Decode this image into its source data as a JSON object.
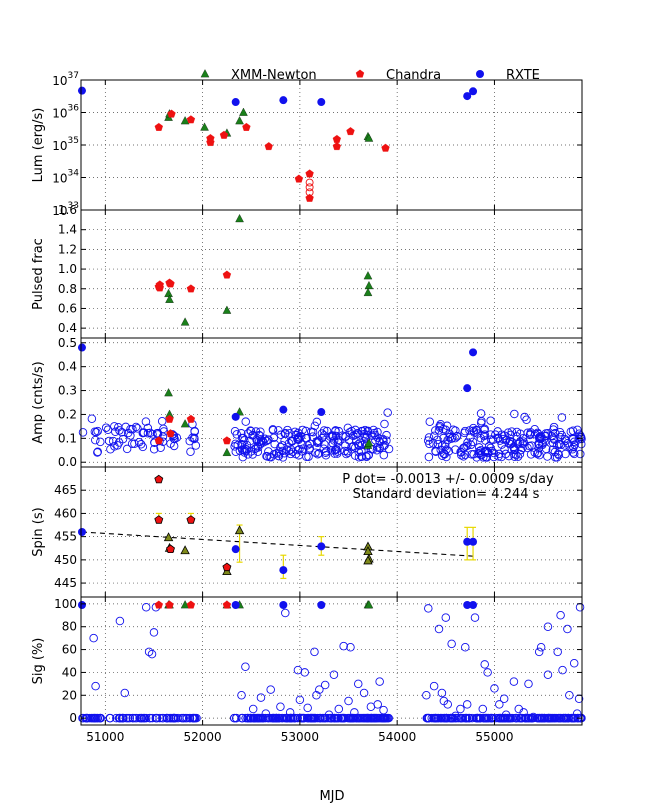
{
  "colors": {
    "xmm": "#1a7f1a",
    "chandra": "#ee1111",
    "rxte": "#1111ee",
    "errorbar": "#e8d800",
    "frame": "#000000",
    "grid": "#444444"
  },
  "legend": [
    {
      "name": "XMM-Newton",
      "marker": "triangle",
      "color": "#1a7f1a"
    },
    {
      "name": "Chandra",
      "marker": "pentagon",
      "color": "#ee1111"
    },
    {
      "name": "RXTE",
      "marker": "circle",
      "color": "#1111ee"
    }
  ],
  "xaxis": {
    "label": "MJD",
    "ticks": [
      51000,
      52000,
      53000,
      54000,
      55000
    ],
    "tick_labels": [
      "51000",
      "52000",
      "53000",
      "54000",
      "55000"
    ],
    "range": [
      50750,
      55900
    ]
  },
  "chart_data": [
    {
      "type": "scatter",
      "ylabel": "Lum (erg/s)",
      "yscale": "log",
      "ylim": [
        1e+33,
        1e+37
      ],
      "yticks": [
        1e+33,
        1e+34,
        1e+35,
        1e+36,
        1e+37
      ],
      "ytick_labels": [
        [
          "10",
          "33"
        ],
        [
          "10",
          "34"
        ],
        [
          "10",
          "35"
        ],
        [
          "10",
          "36"
        ],
        [
          "10",
          "37"
        ]
      ],
      "grid": true,
      "series": [
        {
          "name": "XMM-Newton",
          "marker": "triangle",
          "points": [
            [
              51650,
              7e+35
            ],
            [
              51660,
              9e+35
            ],
            [
              51820,
              5.5e+35
            ],
            [
              52020,
              3.5e+35
            ],
            [
              52250,
              2.3e+35
            ],
            [
              52380,
              5.5e+35
            ],
            [
              52420,
              1e+36
            ],
            [
              53700,
              1.8e+35
            ],
            [
              53710,
              1.6e+35
            ]
          ]
        },
        {
          "name": "Chandra",
          "marker": "pentagon",
          "points": [
            [
              51550,
              3.5e+35
            ],
            [
              51680,
              9e+35
            ],
            [
              51880,
              6e+35
            ],
            [
              52080,
              1.6e+35
            ],
            [
              52080,
              1.2e+35
            ],
            [
              52220,
              2e+35
            ],
            [
              52450,
              3.5e+35
            ],
            [
              52680,
              9e+34
            ],
            [
              52990,
              9e+33
            ],
            [
              53100,
              1.3e+34
            ],
            [
              53100,
              2.3e+33
            ],
            [
              53380,
              1.5e+35
            ],
            [
              53380,
              9e+34
            ],
            [
              53520,
              2.6e+35
            ],
            [
              53880,
              8e+34
            ]
          ]
        },
        {
          "name": "Chandra (open)",
          "marker": "open-circle-red",
          "points": [
            [
              53100,
              7e+33
            ],
            [
              53100,
              5e+33
            ],
            [
              53100,
              3.5e+33
            ]
          ]
        },
        {
          "name": "RXTE",
          "marker": "circle",
          "points": [
            [
              50760,
              4.7e+36
            ],
            [
              52340,
              2.1e+36
            ],
            [
              52830,
              2.4e+36
            ],
            [
              53220,
              2.1e+36
            ],
            [
              54720,
              3.2e+36
            ],
            [
              54780,
              4.5e+36
            ]
          ]
        }
      ]
    },
    {
      "type": "scatter",
      "ylabel": "Pulsed frac",
      "ylim": [
        0.3,
        1.6
      ],
      "yticks": [
        0.4,
        0.6,
        0.8,
        1.0,
        1.2,
        1.4,
        1.6
      ],
      "ytick_labels": [
        "0.4",
        "0.6",
        "0.8",
        "1.0",
        "1.2",
        "1.4",
        "1.6"
      ],
      "grid": true,
      "series": [
        {
          "name": "XMM-Newton",
          "marker": "triangle",
          "points": [
            [
              51650,
              0.75
            ],
            [
              51660,
              0.69
            ],
            [
              51820,
              0.46
            ],
            [
              52250,
              0.58
            ],
            [
              52380,
              1.51
            ],
            [
              53700,
              0.93
            ],
            [
              53710,
              0.83
            ],
            [
              53700,
              0.76
            ]
          ]
        },
        {
          "name": "Chandra",
          "marker": "pentagon",
          "points": [
            [
              51550,
              0.82
            ],
            [
              51560,
              0.84
            ],
            [
              51560,
              0.81
            ],
            [
              51660,
              0.86
            ],
            [
              51670,
              0.85
            ],
            [
              51880,
              0.8
            ],
            [
              52250,
              0.94
            ]
          ]
        }
      ]
    },
    {
      "type": "scatter",
      "ylabel": "Amp (cnts/s)",
      "ylim": [
        -0.02,
        0.52
      ],
      "yticks": [
        0.0,
        0.1,
        0.2,
        0.3,
        0.4,
        0.5
      ],
      "ytick_labels": [
        "0.0",
        "0.1",
        "0.2",
        "0.3",
        "0.4",
        "0.5"
      ],
      "grid": true,
      "series": [
        {
          "name": "XMM-Newton",
          "marker": "triangle",
          "points": [
            [
              51650,
              0.29
            ],
            [
              51660,
              0.2
            ],
            [
              51820,
              0.16
            ],
            [
              52250,
              0.04
            ],
            [
              52380,
              0.21
            ],
            [
              53700,
              0.07
            ],
            [
              53710,
              0.08
            ]
          ]
        },
        {
          "name": "Chandra",
          "marker": "pentagon",
          "points": [
            [
              51550,
              0.09
            ],
            [
              51660,
              0.18
            ],
            [
              51670,
              0.12
            ],
            [
              51880,
              0.18
            ],
            [
              52250,
              0.09
            ]
          ]
        },
        {
          "name": "RXTE",
          "marker": "circle",
          "points": [
            [
              50760,
              0.48
            ],
            [
              52340,
              0.19
            ],
            [
              52830,
              0.22
            ],
            [
              53220,
              0.21
            ],
            [
              54720,
              0.31
            ],
            [
              54780,
              0.46
            ]
          ]
        },
        {
          "name": "RXTE (open)",
          "marker": "open-circle",
          "clusters": [
            [
              50760,
              51950,
              0.02,
              0.38,
              75
            ],
            [
              52320,
              53920,
              0.0,
              0.22,
              230
            ],
            [
              54300,
              55900,
              0.0,
              0.23,
              230
            ]
          ]
        }
      ]
    },
    {
      "type": "scatter",
      "ylabel": "Spin (s)",
      "ylim": [
        442,
        470
      ],
      "yticks": [
        445,
        450,
        455,
        460,
        465
      ],
      "ytick_labels": [
        "445",
        "450",
        "455",
        "460",
        "465"
      ],
      "grid": true,
      "annotation": {
        "line1": "P dot= -0.0013 +/- 0.0009 s/day",
        "line2": "Standard deviation= 4.244 s"
      },
      "fit_line": [
        [
          50760,
          456.0
        ],
        [
          54780,
          450.8
        ]
      ],
      "series": [
        {
          "name": "XMM-Newton",
          "marker": "triangle",
          "points": [
            [
              51650,
              454.8
            ],
            [
              51660,
              452.5
            ],
            [
              51820,
              452.0
            ],
            [
              52250,
              447.5
            ],
            [
              52380,
              456.3
            ],
            [
              53700,
              452.8
            ],
            [
              53700,
              451.8
            ],
            [
              53710,
              450.2
            ],
            [
              53700,
              449.8
            ]
          ]
        },
        {
          "name": "Chandra",
          "marker": "pentagon",
          "points": [
            [
              51550,
              467.3
            ],
            [
              51550,
              458.6
            ],
            [
              51670,
              452.3
            ],
            [
              51880,
              458.6
            ],
            [
              52250,
              448.4
            ]
          ]
        },
        {
          "name": "RXTE",
          "marker": "circle",
          "points": [
            [
              50760,
              456.0
            ],
            [
              52340,
              452.3
            ],
            [
              52830,
              447.8
            ],
            [
              53220,
              452.9
            ],
            [
              54720,
              453.9
            ],
            [
              54780,
              453.9
            ]
          ]
        }
      ],
      "errorbars": [
        [
          52380,
          449.5,
          457.5
        ],
        [
          52830,
          446.0,
          451.0
        ],
        [
          53220,
          451.0,
          455.0
        ],
        [
          54720,
          450.0,
          457.0
        ],
        [
          54780,
          450.0,
          457.0
        ],
        [
          51550,
          458.0,
          460.0
        ],
        [
          51880,
          458.0,
          460.0
        ]
      ]
    },
    {
      "type": "scatter",
      "ylabel": "Sig (%)",
      "ylim": [
        -6,
        106
      ],
      "yticks": [
        0,
        20,
        40,
        60,
        80,
        100
      ],
      "ytick_labels": [
        "0",
        "20",
        "40",
        "60",
        "80",
        "100"
      ],
      "grid": true,
      "series": [
        {
          "name": "XMM-Newton",
          "marker": "triangle",
          "points": [
            [
              51650,
              99
            ],
            [
              51660,
              99
            ],
            [
              51820,
              99
            ],
            [
              52250,
              99
            ],
            [
              52380,
              99
            ],
            [
              53700,
              99
            ],
            [
              53710,
              99
            ]
          ]
        },
        {
          "name": "Chandra",
          "marker": "pentagon",
          "points": [
            [
              51550,
              99
            ],
            [
              51660,
              99
            ],
            [
              51880,
              99
            ],
            [
              52250,
              99
            ]
          ]
        },
        {
          "name": "RXTE",
          "marker": "circle",
          "points": [
            [
              50760,
              99
            ],
            [
              52340,
              99
            ],
            [
              52830,
              99
            ],
            [
              53220,
              99
            ],
            [
              54720,
              99
            ],
            [
              54780,
              99
            ]
          ]
        },
        {
          "name": "RXTE (open)",
          "marker": "open-circle",
          "clusters": [
            [
              50760,
              51950,
              0,
              0,
              90
            ],
            [
              52320,
              53920,
              0,
              0,
              200
            ],
            [
              54300,
              55900,
              0,
              0,
              200
            ]
          ],
          "scatter": [
            [
              50880,
              70
            ],
            [
              50900,
              28
            ],
            [
              51150,
              85
            ],
            [
              51200,
              22
            ],
            [
              51420,
              97
            ],
            [
              51450,
              58
            ],
            [
              51480,
              56
            ],
            [
              51500,
              75
            ],
            [
              51520,
              97
            ],
            [
              52440,
              45
            ],
            [
              52600,
              18
            ],
            [
              52850,
              92
            ],
            [
              52980,
              42
            ],
            [
              53050,
              40
            ],
            [
              53150,
              58
            ],
            [
              53200,
              25
            ],
            [
              53260,
              29
            ],
            [
              53350,
              38
            ],
            [
              53450,
              63
            ],
            [
              53520,
              62
            ],
            [
              53600,
              30
            ],
            [
              53800,
              12
            ],
            [
              53860,
              7
            ],
            [
              54320,
              96
            ],
            [
              54430,
              78
            ],
            [
              54500,
              88
            ],
            [
              54560,
              65
            ],
            [
              54650,
              8
            ],
            [
              54900,
              47
            ],
            [
              55050,
              12
            ],
            [
              55200,
              32
            ],
            [
              55350,
              30
            ],
            [
              55460,
              58
            ],
            [
              55480,
              62
            ],
            [
              55550,
              80
            ],
            [
              55680,
              90
            ],
            [
              55750,
              78
            ],
            [
              55820,
              48
            ],
            [
              55880,
              97
            ],
            [
              54300,
              20
            ],
            [
              54380,
              28
            ],
            [
              54460,
              22
            ],
            [
              54480,
              15
            ],
            [
              54520,
              12
            ],
            [
              54600,
              2
            ],
            [
              54700,
              62
            ],
            [
              54720,
              12
            ],
            [
              54800,
              88
            ],
            [
              54880,
              8
            ],
            [
              54930,
              40
            ],
            [
              55000,
              26
            ],
            [
              55100,
              17
            ],
            [
              55120,
              3
            ],
            [
              55250,
              8
            ],
            [
              55300,
              5
            ],
            [
              55400,
              1
            ],
            [
              55550,
              38
            ],
            [
              55650,
              58
            ],
            [
              55700,
              42
            ],
            [
              55770,
              20
            ],
            [
              55850,
              4
            ],
            [
              55870,
              17
            ],
            [
              52400,
              20
            ],
            [
              52520,
              8
            ],
            [
              52650,
              4
            ],
            [
              52700,
              25
            ],
            [
              52800,
              10
            ],
            [
              52900,
              5
            ],
            [
              53000,
              16
            ],
            [
              53080,
              9
            ],
            [
              53170,
              20
            ],
            [
              53300,
              3
            ],
            [
              53400,
              8
            ],
            [
              53500,
              15
            ],
            [
              53560,
              5
            ],
            [
              53660,
              22
            ],
            [
              53730,
              10
            ],
            [
              53820,
              32
            ]
          ]
        }
      ]
    }
  ]
}
